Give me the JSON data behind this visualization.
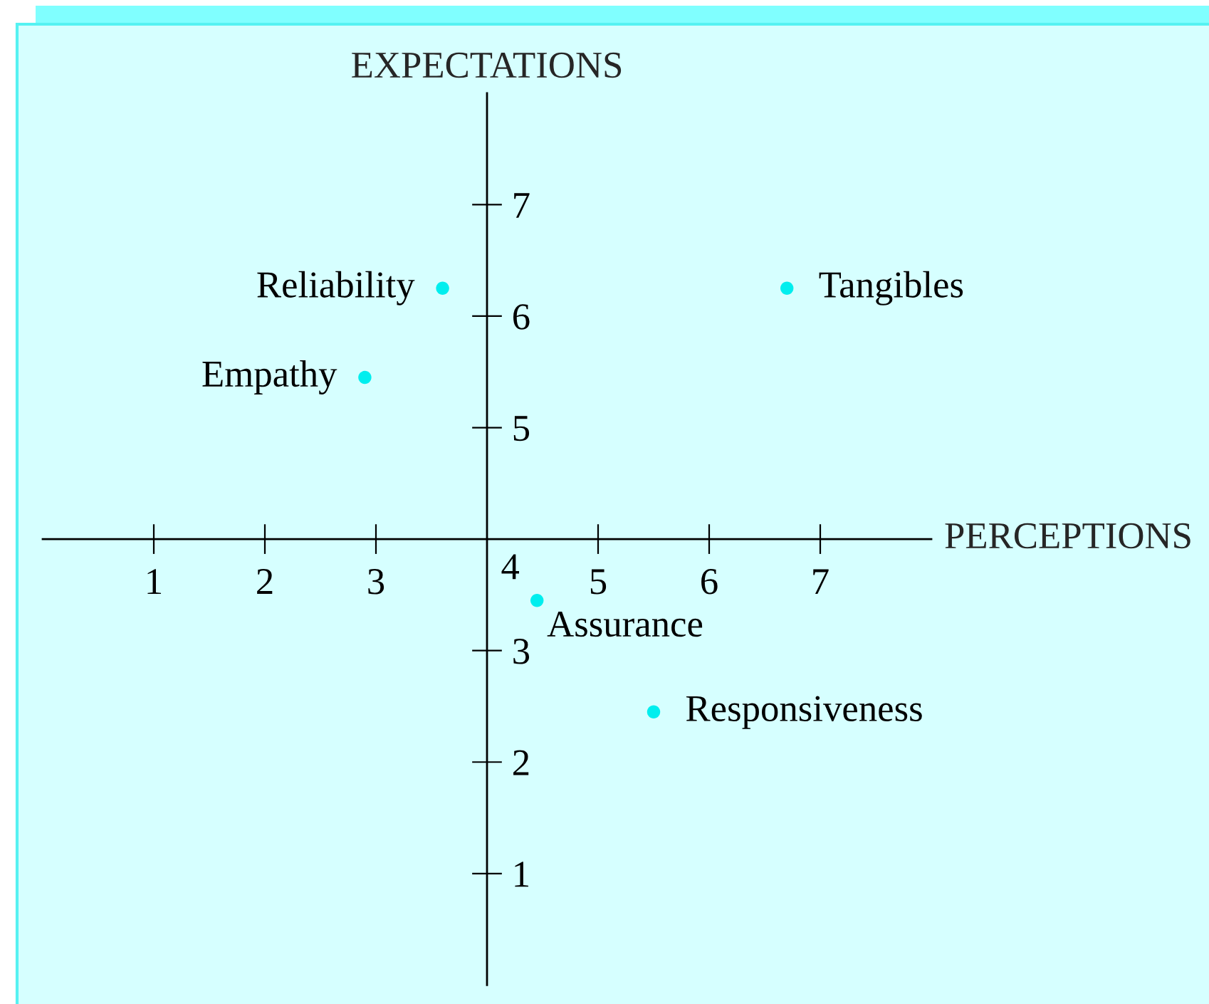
{
  "chart_data": {
    "type": "scatter",
    "xlabel": "PERCEPTIONS",
    "ylabel": "EXPECTATIONS",
    "series": [
      {
        "name": "Reliability",
        "color": "#00eeee",
        "x": [
          3.6
        ],
        "values": [
          6.25
        ]
      },
      {
        "name": "Tangibles",
        "color": "#00eeee",
        "x": [
          6.7
        ],
        "values": [
          6.25
        ]
      },
      {
        "name": "Empathy",
        "color": "#00eeee",
        "x": [
          2.9
        ],
        "values": [
          5.45
        ]
      },
      {
        "name": "Assurance",
        "color": "#00eeee",
        "x": [
          4.45
        ],
        "values": [
          3.45
        ]
      },
      {
        "name": "Responsiveness",
        "color": "#00eeee",
        "x": [
          5.5
        ],
        "values": [
          2.45
        ]
      }
    ],
    "xlim": [
      0,
      8
    ],
    "ylim": [
      0,
      8
    ],
    "xticks": [
      1,
      2,
      3,
      5,
      6,
      7
    ],
    "yticks": [
      1,
      2,
      3,
      5,
      6,
      7
    ],
    "annotations": [
      "4"
    ],
    "marker": "circle"
  }
}
